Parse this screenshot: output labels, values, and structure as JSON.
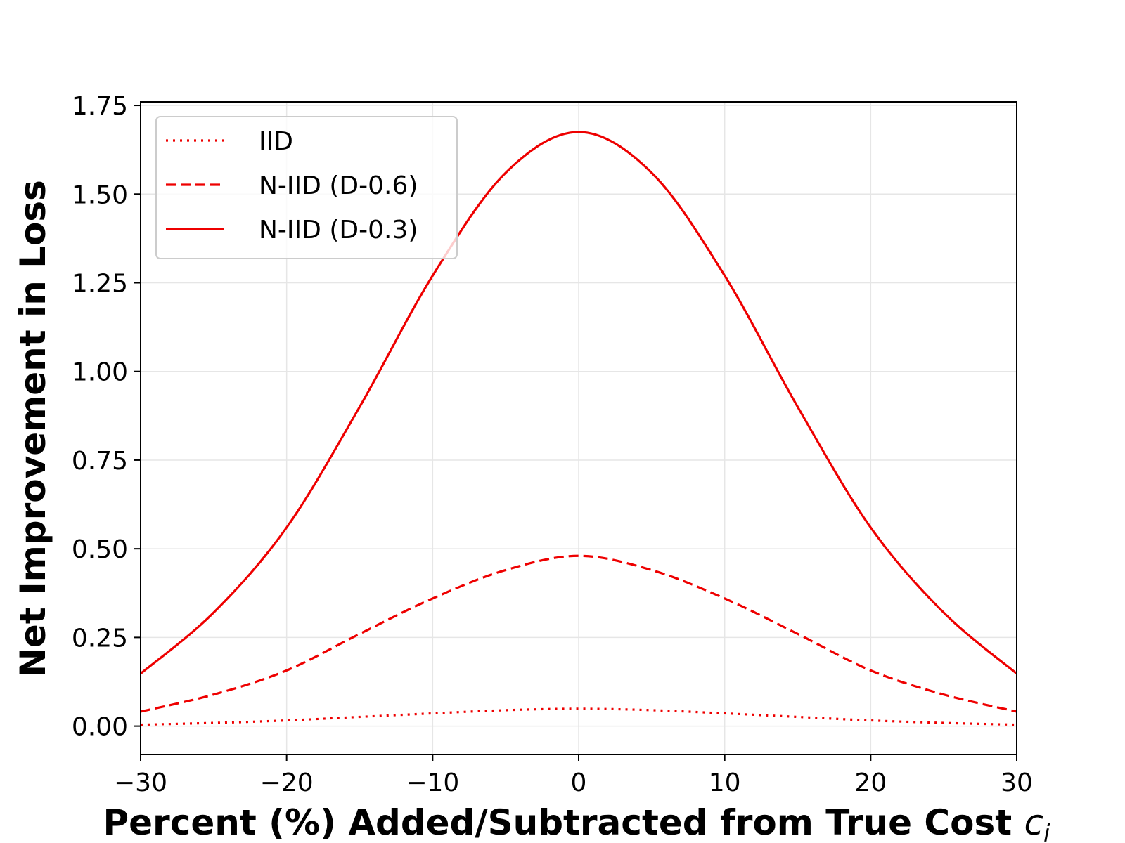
{
  "chart_data": {
    "type": "line",
    "xlabel": "Percent (%) Added/Subtracted from True Cost",
    "xlabel_math": "c",
    "xlabel_math_sub": "i",
    "ylabel": "Net Improvement in Loss",
    "xlim": [
      -30,
      30
    ],
    "ylim": [
      -0.08,
      1.76
    ],
    "x_ticks": [
      -30,
      -20,
      -10,
      0,
      10,
      20,
      30
    ],
    "x_tick_labels": [
      "−30",
      "−20",
      "−10",
      "0",
      "10",
      "20",
      "30"
    ],
    "y_ticks": [
      0.0,
      0.25,
      0.5,
      0.75,
      1.0,
      1.25,
      1.5,
      1.75
    ],
    "y_tick_labels": [
      "0.00",
      "0.25",
      "0.50",
      "0.75",
      "1.00",
      "1.25",
      "1.50",
      "1.75"
    ],
    "grid": true,
    "legend_position": "upper-left",
    "color": "#ee0000",
    "series": [
      {
        "name": "IID",
        "style": "dotted",
        "x": [
          -30,
          -25,
          -20,
          -15,
          -10,
          -5,
          0,
          5,
          10,
          15,
          20,
          25,
          30
        ],
        "values": [
          0.004,
          0.009,
          0.016,
          0.026,
          0.036,
          0.045,
          0.049,
          0.045,
          0.036,
          0.026,
          0.016,
          0.009,
          0.004
        ]
      },
      {
        "name": "N-IID (D-0.6)",
        "style": "dashed",
        "x": [
          -30,
          -25,
          -20,
          -15,
          -10,
          -5,
          0,
          5,
          10,
          15,
          20,
          25,
          30
        ],
        "values": [
          0.041,
          0.089,
          0.157,
          0.26,
          0.36,
          0.44,
          0.48,
          0.44,
          0.36,
          0.26,
          0.157,
          0.089,
          0.041
        ]
      },
      {
        "name": "N-IID (D-0.3)",
        "style": "solid",
        "x": [
          -30,
          -25,
          -20,
          -15,
          -10,
          -5,
          0,
          5,
          10,
          15,
          20,
          25,
          30
        ],
        "values": [
          0.148,
          0.32,
          0.56,
          0.9,
          1.27,
          1.56,
          1.675,
          1.56,
          1.27,
          0.9,
          0.56,
          0.32,
          0.148
        ]
      }
    ]
  }
}
